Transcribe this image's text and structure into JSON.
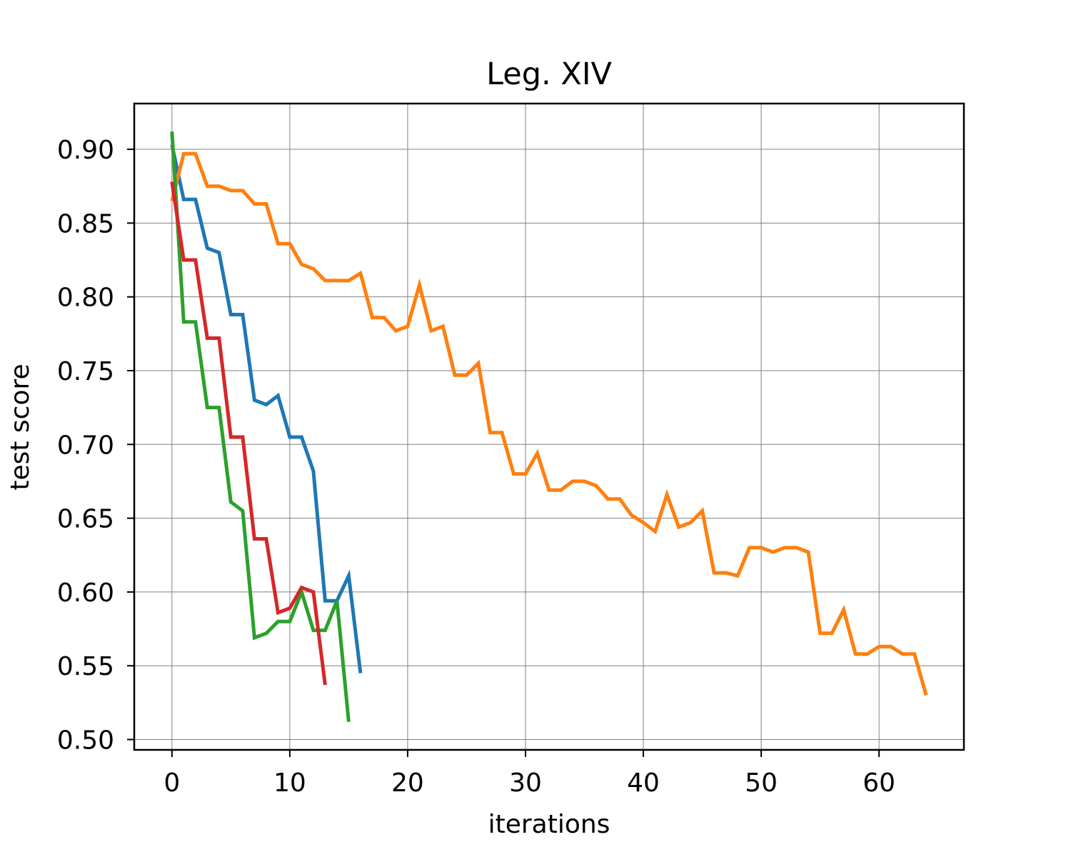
{
  "chart_data": {
    "type": "line",
    "title": "Leg. XIV",
    "xlabel": "iterations",
    "ylabel": "test score",
    "xlim": [
      -3.2,
      67.2
    ],
    "ylim": [
      0.493,
      0.931
    ],
    "xticks": [
      0,
      10,
      20,
      30,
      40,
      50,
      60
    ],
    "xtick_labels": [
      "0",
      "10",
      "20",
      "30",
      "40",
      "50",
      "60"
    ],
    "yticks": [
      0.5,
      0.55,
      0.6,
      0.65,
      0.7,
      0.75,
      0.8,
      0.85,
      0.9
    ],
    "ytick_labels": [
      "0.50",
      "0.55",
      "0.60",
      "0.65",
      "0.70",
      "0.75",
      "0.80",
      "0.85",
      "0.90"
    ],
    "grid": true,
    "legend": false,
    "series": [
      {
        "color": "#1f77b4",
        "x": [
          0,
          1,
          2,
          3,
          4,
          5,
          6,
          7,
          8,
          9,
          10,
          11,
          12,
          13,
          14,
          15,
          16
        ],
        "values": [
          0.903,
          0.866,
          0.866,
          0.833,
          0.83,
          0.788,
          0.788,
          0.73,
          0.727,
          0.733,
          0.705,
          0.705,
          0.682,
          0.594,
          0.594,
          0.611,
          0.545
        ]
      },
      {
        "color": "#ff7f0e",
        "x": [
          0,
          1,
          2,
          3,
          4,
          5,
          6,
          7,
          8,
          9,
          10,
          11,
          12,
          13,
          14,
          15,
          16,
          17,
          18,
          19,
          20,
          21,
          22,
          23,
          24,
          25,
          26,
          27,
          28,
          29,
          30,
          31,
          32,
          33,
          34,
          35,
          36,
          37,
          38,
          39,
          40,
          41,
          42,
          43,
          44,
          45,
          46,
          47,
          48,
          49,
          50,
          51,
          52,
          53,
          54,
          55,
          56,
          57,
          58,
          59,
          60,
          61,
          62,
          63,
          64
        ],
        "values": [
          0.865,
          0.897,
          0.897,
          0.875,
          0.875,
          0.872,
          0.872,
          0.863,
          0.863,
          0.836,
          0.836,
          0.822,
          0.819,
          0.811,
          0.811,
          0.811,
          0.816,
          0.786,
          0.786,
          0.777,
          0.78,
          0.808,
          0.777,
          0.78,
          0.747,
          0.747,
          0.755,
          0.708,
          0.708,
          0.68,
          0.68,
          0.694,
          0.669,
          0.669,
          0.675,
          0.675,
          0.672,
          0.663,
          0.663,
          0.652,
          0.647,
          0.641,
          0.666,
          0.644,
          0.647,
          0.655,
          0.613,
          0.613,
          0.611,
          0.63,
          0.63,
          0.627,
          0.63,
          0.63,
          0.627,
          0.572,
          0.572,
          0.588,
          0.558,
          0.558,
          0.563,
          0.563,
          0.558,
          0.558,
          0.53
        ]
      },
      {
        "color": "#2ca02c",
        "x": [
          0,
          1,
          2,
          3,
          4,
          5,
          6,
          7,
          8,
          9,
          10,
          11,
          12,
          13,
          14,
          15
        ],
        "values": [
          0.912,
          0.783,
          0.783,
          0.725,
          0.725,
          0.661,
          0.655,
          0.569,
          0.572,
          0.58,
          0.58,
          0.6,
          0.574,
          0.574,
          0.594,
          0.512
        ]
      },
      {
        "color": "#d62728",
        "x": [
          0,
          1,
          2,
          3,
          4,
          5,
          6,
          7,
          8,
          9,
          10,
          11,
          12,
          13
        ],
        "values": [
          0.878,
          0.825,
          0.825,
          0.772,
          0.772,
          0.705,
          0.705,
          0.636,
          0.636,
          0.586,
          0.589,
          0.603,
          0.6,
          0.537
        ]
      }
    ]
  }
}
